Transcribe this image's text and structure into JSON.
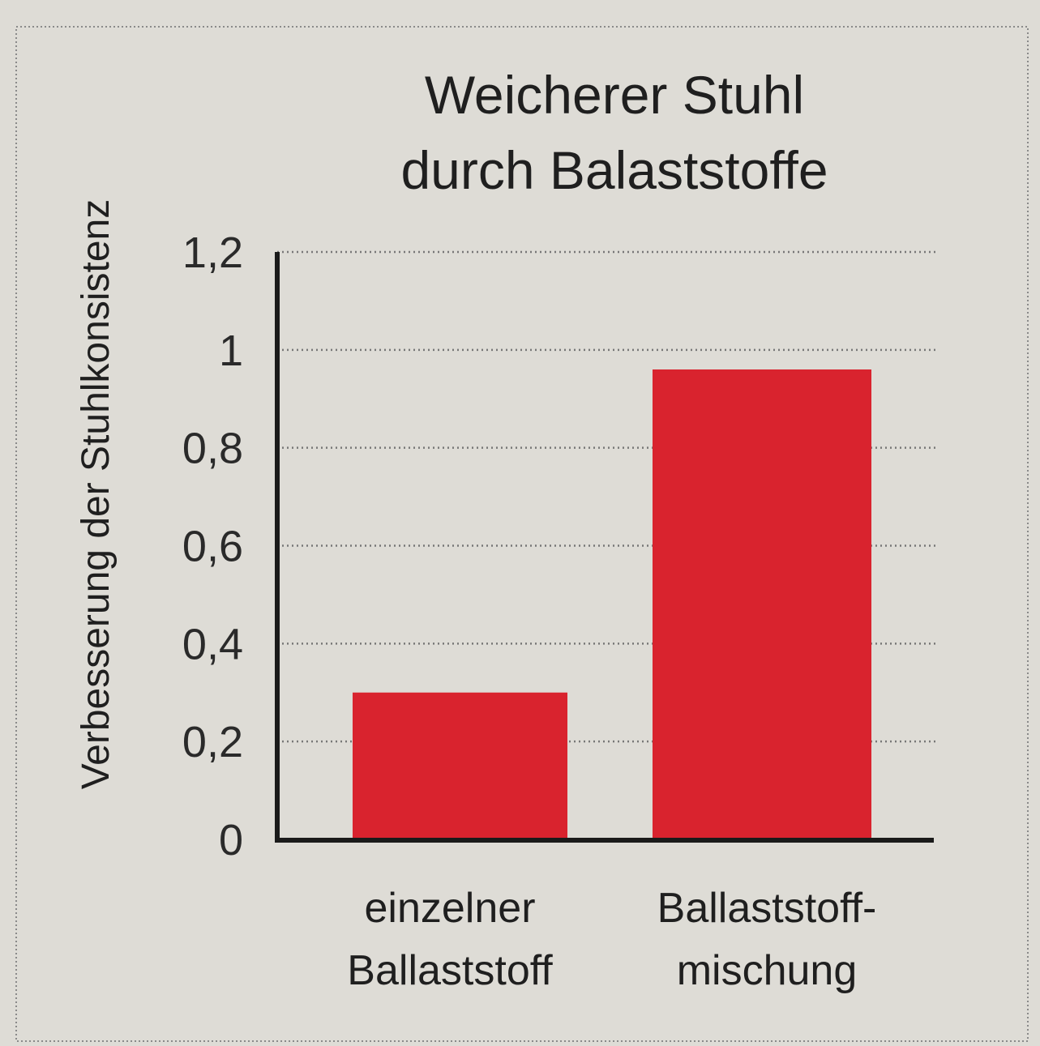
{
  "chart_data": {
    "type": "bar",
    "title": [
      "Weicherer Stuhl",
      "durch Balaststoffe"
    ],
    "ylabel": "Verbesserung der Stuhlkonsistenz",
    "xlabel": "",
    "categories": [
      [
        "einzelner",
        "Ballaststoff"
      ],
      [
        "Ballaststoff-",
        "mischung"
      ]
    ],
    "values": [
      0.3,
      0.96
    ],
    "ylim": [
      0,
      1.2
    ],
    "yticks": [
      {
        "value": 0,
        "label": "0"
      },
      {
        "value": 0.2,
        "label": "0,2"
      },
      {
        "value": 0.4,
        "label": "0,4"
      },
      {
        "value": 0.6,
        "label": "0,6"
      },
      {
        "value": 0.8,
        "label": "0,8"
      },
      {
        "value": 1.0,
        "label": "1"
      },
      {
        "value": 1.2,
        "label": "1,2"
      }
    ],
    "grid": true,
    "colors": {
      "bar": "#d9232e",
      "axis": "#1a1a1a",
      "grid": "#777777",
      "background": "#dedcd6"
    }
  }
}
